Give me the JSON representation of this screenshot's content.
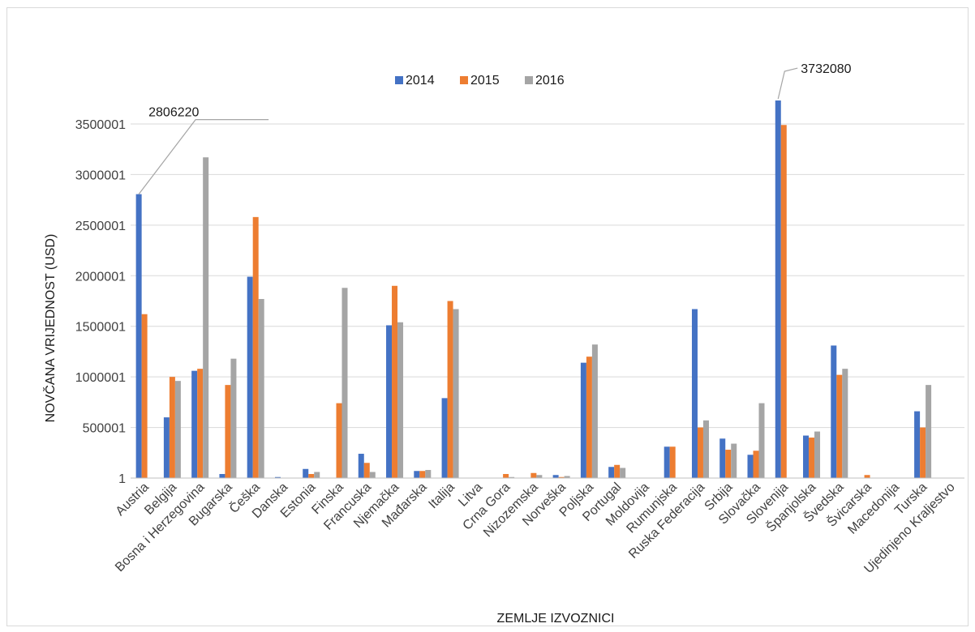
{
  "chart_data": {
    "type": "bar",
    "xlabel": "ZEMLJE IZVOZNICI",
    "ylabel": "NOVČANA VRIJEDNOST (USD)",
    "ylim": [
      1,
      4000001
    ],
    "yticks": [
      "1",
      "500001",
      "1000001",
      "1500001",
      "2000001",
      "2500001",
      "3000001",
      "3500001"
    ],
    "ytick_values": [
      1,
      500001,
      1000001,
      1500001,
      2000001,
      2500001,
      3000001,
      3500001
    ],
    "grid": "horizontal",
    "legend_position": "top",
    "categories": [
      "Austria",
      "Belgija",
      "Bosna i Herzegovina",
      "Bugarska",
      "Češka",
      "Danska",
      "Estonia",
      "Finska",
      "Francuska",
      "Njemačka",
      "Mađarska",
      "Italija",
      "Litva",
      "Crna Gora",
      "Nizozemska",
      "Norveška",
      "Poljska",
      "Portugal",
      "Moldovija",
      "Rumunjska",
      "Ruska Federacija",
      "Srbija",
      "Slovačka",
      "Slovenija",
      "Španjolska",
      "Švedska",
      "Švicarska",
      "Macedonija",
      "Turska",
      "Ujedinjeno Kraljestvo"
    ],
    "series": [
      {
        "name": "2014",
        "color": "#4472c4",
        "values": [
          2806220,
          600000,
          1060000,
          40000,
          1990000,
          10000,
          90000,
          0,
          240000,
          1510000,
          70000,
          790000,
          0,
          0,
          0,
          30000,
          1140000,
          110000,
          0,
          310000,
          1670000,
          390000,
          230000,
          3732080,
          420000,
          1310000,
          0,
          0,
          660000,
          0
        ]
      },
      {
        "name": "2015",
        "color": "#ed7d31",
        "values": [
          1620000,
          1000000,
          1080000,
          920000,
          2580000,
          0,
          40000,
          740000,
          150000,
          1900000,
          70000,
          1750000,
          0,
          40000,
          50000,
          10000,
          1200000,
          130000,
          0,
          310000,
          500000,
          280000,
          270000,
          3490000,
          400000,
          1020000,
          30000,
          0,
          500000,
          0
        ]
      },
      {
        "name": "2016",
        "color": "#a5a5a5",
        "values": [
          0,
          960000,
          3170000,
          1180000,
          1770000,
          0,
          60000,
          1880000,
          60000,
          1540000,
          80000,
          1670000,
          0,
          10000,
          30000,
          20000,
          1320000,
          100000,
          0,
          0,
          570000,
          340000,
          740000,
          0,
          460000,
          1080000,
          0,
          0,
          920000,
          0
        ]
      }
    ],
    "annotations": [
      {
        "text": "2806220",
        "series": "2014",
        "category": "Austria"
      },
      {
        "text": "3732080",
        "series": "2014",
        "category": "Slovenija"
      }
    ]
  }
}
